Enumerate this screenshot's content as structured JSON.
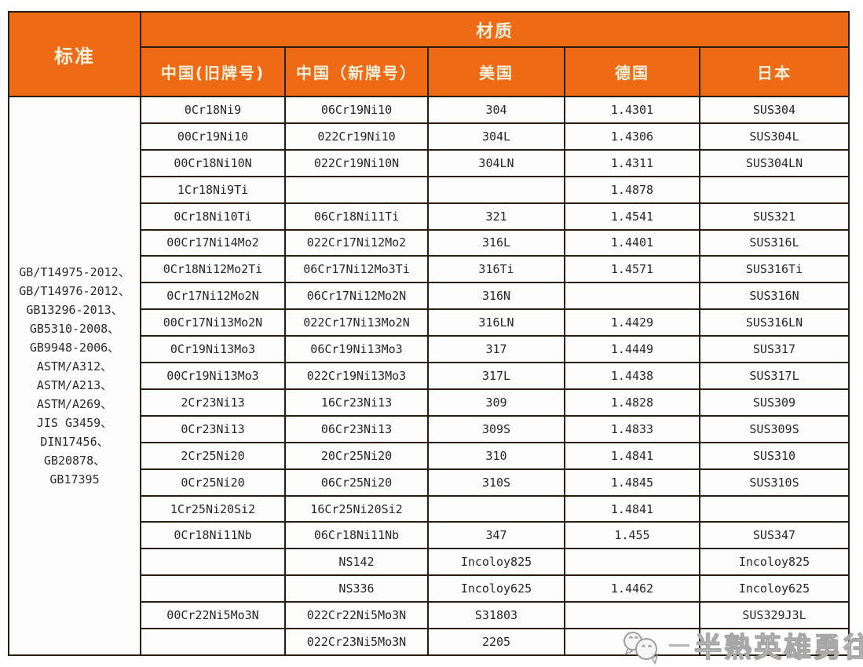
{
  "colors": {
    "header_bg": "#ee6a15",
    "header_text": "#fcf0da",
    "border": "#2a1e12",
    "cell_bg": "#fdfdfd",
    "cell_text": "#262626",
    "watermark_gray": "#a6a6a6"
  },
  "table": {
    "headers": {
      "standard": "标准",
      "material": "材质",
      "china_old": "中国(旧牌号)",
      "china_new": "中国（新牌号）",
      "usa": "美国",
      "germany": "德国",
      "japan": "日本"
    },
    "standards": [
      "GB/T14975-2012、",
      "GB/T14976-2012、",
      "GB13296-2013、",
      "GB5310-2008、",
      "GB9948-2006、",
      "ASTM/A312、",
      "ASTM/A213、",
      "ASTM/A269、",
      "JIS G3459、",
      "DIN17456、",
      "GB20878、",
      "GB17395"
    ],
    "rows": [
      {
        "old": "0Cr18Ni9",
        "new": "06Cr19Ni10",
        "us": "304",
        "de": "1.4301",
        "jp": "SUS304"
      },
      {
        "old": "00Cr19Ni10",
        "new": "022Cr19Ni10",
        "us": "304L",
        "de": "1.4306",
        "jp": "SUS304L"
      },
      {
        "old": "00Cr18Ni10N",
        "new": "022Cr19Ni10N",
        "us": "304LN",
        "de": "1.4311",
        "jp": "SUS304LN"
      },
      {
        "old": "1Cr18Ni9Ti",
        "new": "",
        "us": "",
        "de": "1.4878",
        "jp": ""
      },
      {
        "old": "0Cr18Ni10Ti",
        "new": "06Cr18Ni11Ti",
        "us": "321",
        "de": "1.4541",
        "jp": "SUS321"
      },
      {
        "old": "00Cr17Ni14Mo2",
        "new": "022Cr17Ni12Mo2",
        "us": "316L",
        "de": "1.4401",
        "jp": "SUS316L"
      },
      {
        "old": "0Cr18Ni12Mo2Ti",
        "new": "06Cr17Ni12Mo3Ti",
        "us": "316Ti",
        "de": "1.4571",
        "jp": "SUS316Ti"
      },
      {
        "old": "0Cr17Ni12Mo2N",
        "new": "06Cr17Ni12Mo2N",
        "us": "316N",
        "de": "",
        "jp": "SUS316N"
      },
      {
        "old": "00Cr17Ni13Mo2N",
        "new": "022Cr17Ni13Mo2N",
        "us": "316LN",
        "de": "1.4429",
        "jp": "SUS316LN"
      },
      {
        "old": "0Cr19Ni13Mo3",
        "new": "06Cr19Ni13Mo3",
        "us": "317",
        "de": "1.4449",
        "jp": "SUS317"
      },
      {
        "old": "00Cr19Ni13Mo3",
        "new": "022Cr19Ni13Mo3",
        "us": "317L",
        "de": "1.4438",
        "jp": "SUS317L"
      },
      {
        "old": "2Cr23Ni13",
        "new": "16Cr23Ni13",
        "us": "309",
        "de": "1.4828",
        "jp": "SUS309"
      },
      {
        "old": "0Cr23Ni13",
        "new": "06Cr23Ni13",
        "us": "309S",
        "de": "1.4833",
        "jp": "SUS309S"
      },
      {
        "old": "2Cr25Ni20",
        "new": "20Cr25Ni20",
        "us": "310",
        "de": "1.4841",
        "jp": "SUS310"
      },
      {
        "old": "0Cr25Ni20",
        "new": "06Cr25Ni20",
        "us": "310S",
        "de": "1.4845",
        "jp": "SUS310S"
      },
      {
        "old": "1Cr25Ni20Si2",
        "new": "16Cr25Ni20Si2",
        "us": "",
        "de": "1.4841",
        "jp": ""
      },
      {
        "old": "0Cr18Ni11Nb",
        "new": "06Cr18Ni11Nb",
        "us": "347",
        "de": "1.455",
        "jp": "SUS347"
      },
      {
        "old": "",
        "new": "NS142",
        "us": "Incoloy825",
        "de": "",
        "jp": "Incoloy825"
      },
      {
        "old": "",
        "new": "NS336",
        "us": "Incoloy625",
        "de": "1.4462",
        "jp": "Incoloy625"
      },
      {
        "old": "00Cr22Ni5Mo3N",
        "new": "022Cr22Ni5Mo3N",
        "us": "S31803",
        "de": "",
        "jp": "SUS329J3L"
      },
      {
        "old": "",
        "new": "022Cr23Ni5Mo3N",
        "us": "2205",
        "de": "",
        "jp": ""
      }
    ]
  },
  "watermark": {
    "text": "半熟英雄勇往直前"
  }
}
